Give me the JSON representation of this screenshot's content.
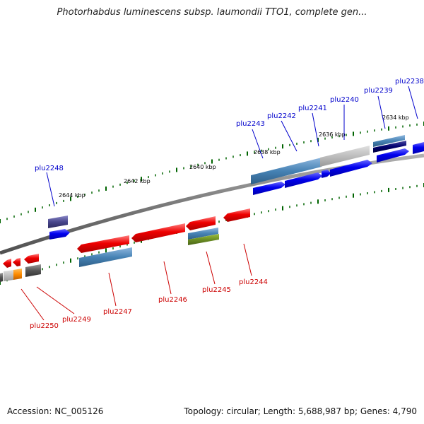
{
  "title": "Photorhabdus luminescens subsp. laumondii TTO1, complete gen...",
  "footer": {
    "accession": "Accession: NC_005126",
    "summary": "Topology: circular; Length: 5,688,987 bp; Genes: 4,790"
  },
  "kbp_ticks": [
    "2644 kbp",
    "2642 kbp",
    "2640 kbp",
    "2638 kbp",
    "2636 kbp",
    "2634 kbp"
  ],
  "forward_genes": [
    "plu2248",
    "plu2243",
    "plu2242",
    "plu2241",
    "plu2240",
    "plu2239",
    "plu2238"
  ],
  "reverse_genes": [
    "plu2250",
    "plu2249",
    "plu2247",
    "plu2246",
    "plu2245",
    "plu2244"
  ],
  "colors": {
    "forward_cds": "#0000ee",
    "reverse_cds": "#ee0000",
    "gene_steelblue": "#4682b4",
    "gene_navy": "#00006e",
    "backbone": "#808080",
    "tick_green": "#006400",
    "label_blue": "#0000cc",
    "label_red": "#cc0000"
  }
}
